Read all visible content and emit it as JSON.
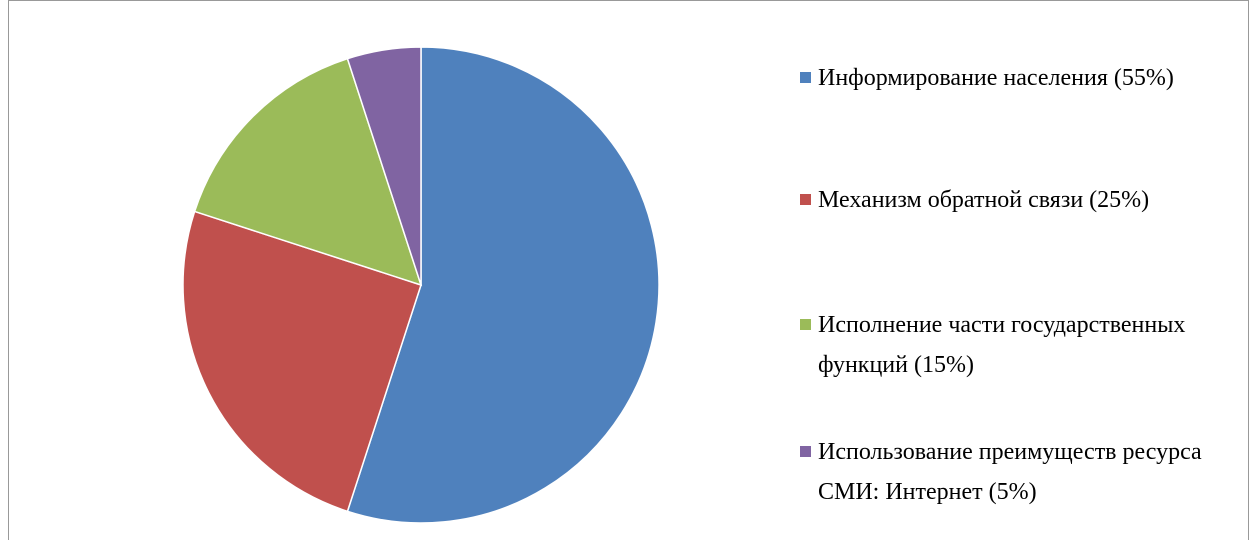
{
  "chart_data": {
    "type": "pie",
    "categories": [
      "Информирование населения (55%)",
      "Механизм обратной связи (25%)",
      "Исполнение части государственных функций (15%)",
      "Использование преимуществ ресурса СМИ: Интернет (5%)"
    ],
    "values": [
      55,
      25,
      15,
      5
    ],
    "colors": [
      "#4f81bd",
      "#c0504d",
      "#9bbb59",
      "#8064a2"
    ],
    "legend": "right"
  }
}
